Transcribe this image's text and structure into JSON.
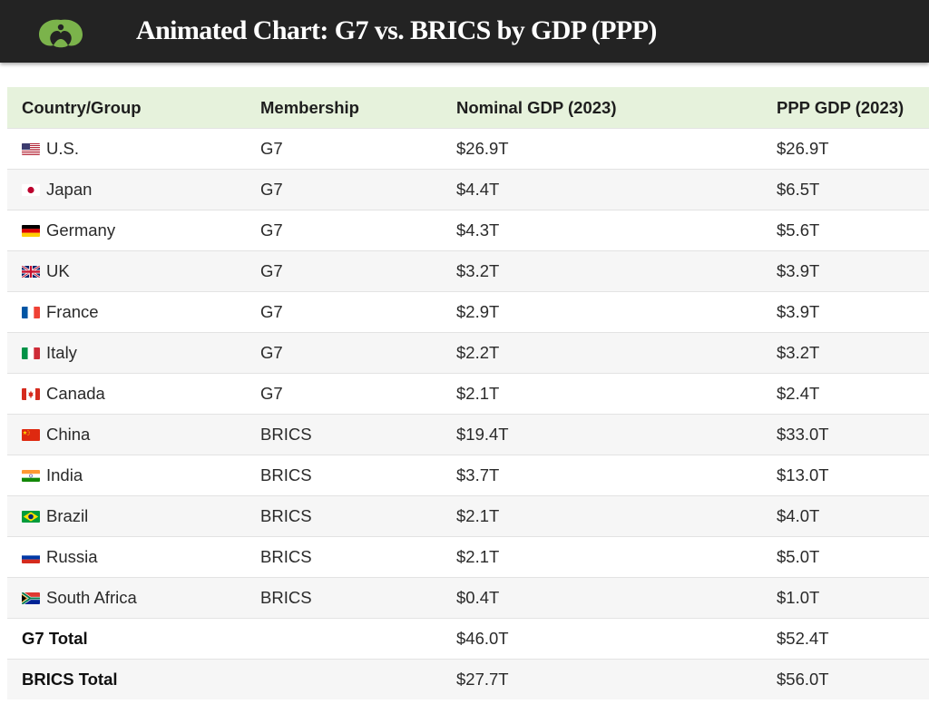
{
  "header": {
    "title": "Animated Chart: G7 vs. BRICS by GDP (PPP)",
    "logo_icon": "visual-capitalist-logo-icon",
    "logo_color": "#7bb34b",
    "background_color": "#232323"
  },
  "table": {
    "columns": [
      "Country/Group",
      "Membership",
      "Nominal GDP (2023)",
      "PPP GDP (2023)"
    ],
    "rows": [
      {
        "name": "U.S.",
        "flag": "us-flag-icon",
        "membership": "G7",
        "nominal": "$26.9T",
        "ppp": "$26.9T"
      },
      {
        "name": "Japan",
        "flag": "japan-flag-icon",
        "membership": "G7",
        "nominal": "$4.4T",
        "ppp": "$6.5T"
      },
      {
        "name": "Germany",
        "flag": "germany-flag-icon",
        "membership": "G7",
        "nominal": "$4.3T",
        "ppp": "$5.6T"
      },
      {
        "name": "UK",
        "flag": "uk-flag-icon",
        "membership": "G7",
        "nominal": "$3.2T",
        "ppp": "$3.9T"
      },
      {
        "name": "France",
        "flag": "france-flag-icon",
        "membership": "G7",
        "nominal": "$2.9T",
        "ppp": "$3.9T"
      },
      {
        "name": "Italy",
        "flag": "italy-flag-icon",
        "membership": "G7",
        "nominal": "$2.2T",
        "ppp": "$3.2T"
      },
      {
        "name": "Canada",
        "flag": "canada-flag-icon",
        "membership": "G7",
        "nominal": "$2.1T",
        "ppp": "$2.4T"
      },
      {
        "name": "China",
        "flag": "china-flag-icon",
        "membership": "BRICS",
        "nominal": "$19.4T",
        "ppp": "$33.0T"
      },
      {
        "name": "India",
        "flag": "india-flag-icon",
        "membership": "BRICS",
        "nominal": "$3.7T",
        "ppp": "$13.0T"
      },
      {
        "name": "Brazil",
        "flag": "brazil-flag-icon",
        "membership": "BRICS",
        "nominal": "$2.1T",
        "ppp": "$4.0T"
      },
      {
        "name": "Russia",
        "flag": "russia-flag-icon",
        "membership": "BRICS",
        "nominal": "$2.1T",
        "ppp": "$5.0T"
      },
      {
        "name": "South Africa",
        "flag": "south-africa-flag-icon",
        "membership": "BRICS",
        "nominal": "$0.4T",
        "ppp": "$1.0T"
      }
    ],
    "totals": [
      {
        "name": "G7 Total",
        "membership": "",
        "nominal": "$46.0T",
        "ppp": "$52.4T"
      },
      {
        "name": "BRICS Total",
        "membership": "",
        "nominal": "$27.7T",
        "ppp": "$56.0T"
      }
    ],
    "header_background": "#e6f2dc"
  }
}
